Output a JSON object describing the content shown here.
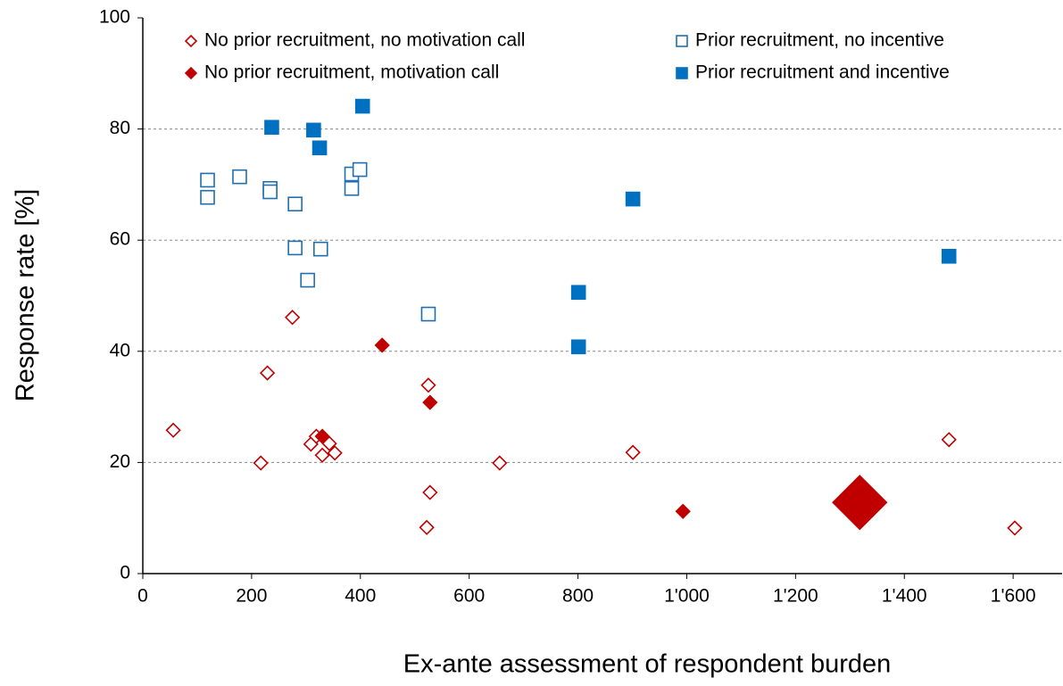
{
  "chart_data": {
    "type": "scatter",
    "x_label": "Ex-ante assessment of respondent burden",
    "y_label": "Response rate [%]",
    "xlim": [
      0,
      1690
    ],
    "ylim": [
      0,
      100
    ],
    "xticks": [
      0,
      200,
      400,
      600,
      800,
      {
        "value": 1000,
        "label": "1'000"
      },
      {
        "value": 1200,
        "label": "1'200"
      },
      {
        "value": 1400,
        "label": "1'400"
      },
      {
        "value": 1600,
        "label": "1'600"
      }
    ],
    "yticks": [
      0,
      20,
      40,
      60,
      80,
      100
    ],
    "grid": true,
    "series": [
      {
        "name": "No prior recruitment, no motivation call",
        "color": "#c00000",
        "marker": "diamond",
        "filled": false,
        "x": [
          56,
          217,
          229,
          275,
          309,
          319,
          330,
          343,
          353,
          522,
          528,
          525,
          656,
          901,
          1482,
          1603
        ],
        "values": [
          25.8,
          19.9,
          36.1,
          46.1,
          23.3,
          24.7,
          21.3,
          23.4,
          21.7,
          8.3,
          14.6,
          33.9,
          19.9,
          21.8,
          24.1,
          8.2
        ]
      },
      {
        "name": "No prior recruitment, motivation call",
        "color": "#c00000",
        "marker": "diamond",
        "filled": true,
        "x": [
          330,
          440,
          528,
          993,
          1318
        ],
        "values": [
          24.7,
          41.1,
          30.8,
          11.2,
          12.8
        ],
        "sizes": [
          1,
          1,
          1,
          1,
          4
        ]
      },
      {
        "name": "Prior recruitment, no incentive",
        "color": "#1f6fb0",
        "marker": "square",
        "filled": false,
        "x": [
          119,
          119,
          178,
          234,
          234,
          280,
          280,
          327,
          303,
          384,
          384,
          399,
          525
        ],
        "values": [
          70.8,
          67.7,
          71.4,
          69.3,
          68.7,
          66.5,
          58.6,
          58.4,
          52.8,
          71.9,
          69.3,
          72.7,
          46.7
        ]
      },
      {
        "name": "Prior recruitment and incentive",
        "color": "#0070c0",
        "marker": "square",
        "filled": true,
        "x": [
          237,
          314,
          325,
          404,
          901,
          801,
          801,
          1482
        ],
        "values": [
          80.3,
          79.8,
          76.6,
          84.1,
          67.4,
          50.6,
          40.8,
          57.1
        ]
      }
    ]
  }
}
